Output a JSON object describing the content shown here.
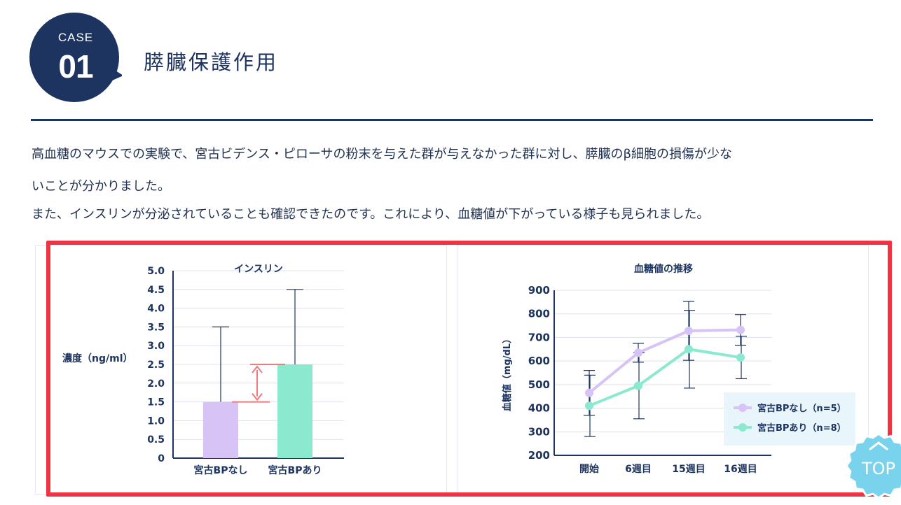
{
  "badge": {
    "case_label": "CASE",
    "number": "01"
  },
  "title": "膵臓保護作用",
  "paragraphs": [
    "高血糖のマウスでの実験で、宮古ビデンス・ピローサの粉末を与えた群が与えなかった群に対し、膵臓のβ細胞の損傷が少な",
    "いことが分かりました。",
    "また、インスリンが分泌されていることも確認できたのです。これにより、血糖値が下がっている様子も見られました。"
  ],
  "top_button": {
    "label": "TOP",
    "icon": "chevron-up-icon"
  },
  "colors": {
    "navy": "#1d3461",
    "purple": "#d7c3f6",
    "mint": "#8be9cf",
    "arrow": "#ee7a80",
    "highlight": "#ee3344"
  },
  "chart_data": [
    {
      "type": "bar",
      "title": "インスリン",
      "ylabel": "濃度（ng/ml）",
      "xlabel": "",
      "categories": [
        "宮古BPなし",
        "宮古BPあり"
      ],
      "values": [
        1.5,
        2.5
      ],
      "error_upper": [
        3.5,
        4.5
      ],
      "ylim": [
        0,
        5
      ],
      "yticks": [
        "0",
        "0.5",
        "1.0",
        "1.5",
        "2.0",
        "2.5",
        "3.0",
        "3.5",
        "4.0",
        "4.5",
        "5.0"
      ],
      "grid": true,
      "colors": [
        "#d7c3f6",
        "#8be9cf"
      ]
    },
    {
      "type": "line",
      "title": "血糖値の推移",
      "ylabel": "血糖値（mg/dL）",
      "xlabel": "",
      "x": [
        "開始",
        "6週目",
        "15週目",
        "16週目"
      ],
      "ylim": [
        200,
        900
      ],
      "yticks": [
        "200",
        "300",
        "400",
        "500",
        "600",
        "700",
        "800",
        "900"
      ],
      "grid": true,
      "legend_position": "bottom-right",
      "series": [
        {
          "name": "宮古BPなし（n=5）",
          "color": "#d7c3f6",
          "values": [
            465,
            635,
            728,
            732
          ],
          "error": [
            95,
            40,
            125,
            65
          ]
        },
        {
          "name": "宮古BPあり（n=8）",
          "color": "#8be9cf",
          "values": [
            410,
            495,
            650,
            615
          ],
          "error": [
            130,
            140,
            165,
            90
          ]
        }
      ]
    }
  ]
}
